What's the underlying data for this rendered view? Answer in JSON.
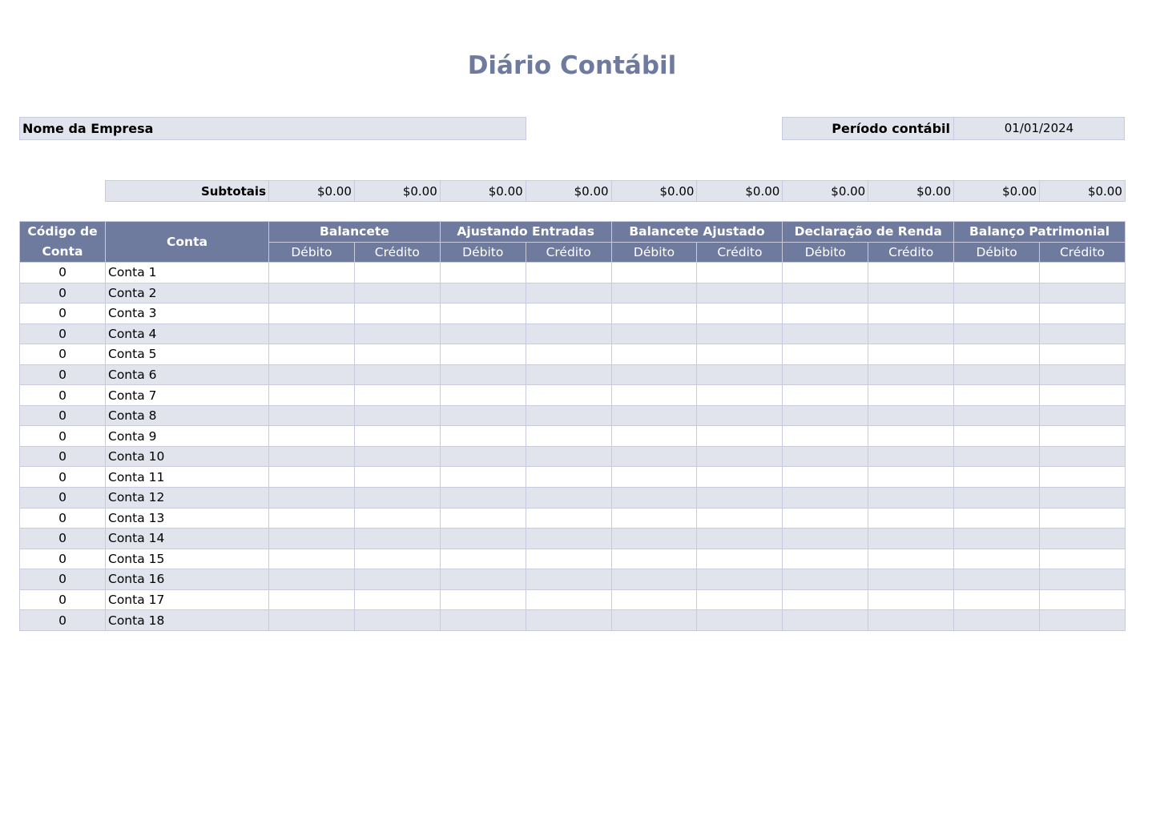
{
  "title": "Diário Contábil",
  "company_label": "Nome da Empresa",
  "period_label": "Período contábil",
  "period_value": "01/01/2024",
  "subtotals_label": "Subtotais",
  "subtotals": [
    "$0.00",
    "$0.00",
    "$0.00",
    "$0.00",
    "$0.00",
    "$0.00",
    "$0.00",
    "$0.00",
    "$0.00",
    "$0.00"
  ],
  "headers": {
    "code": "Código de Conta",
    "account": "Conta",
    "groups": [
      "Balancete",
      "Ajustando Entradas",
      "Balancete Ajustado",
      "Declaração de Renda",
      "Balanço Patrimonial"
    ],
    "debit": "Débito",
    "credit": "Crédito"
  },
  "rows": [
    {
      "code": "0",
      "account": "Conta 1"
    },
    {
      "code": "0",
      "account": "Conta 2"
    },
    {
      "code": "0",
      "account": "Conta 3"
    },
    {
      "code": "0",
      "account": "Conta 4"
    },
    {
      "code": "0",
      "account": "Conta 5"
    },
    {
      "code": "0",
      "account": "Conta 6"
    },
    {
      "code": "0",
      "account": "Conta 7"
    },
    {
      "code": "0",
      "account": "Conta 8"
    },
    {
      "code": "0",
      "account": "Conta 9"
    },
    {
      "code": "0",
      "account": "Conta 10"
    },
    {
      "code": "0",
      "account": "Conta 11"
    },
    {
      "code": "0",
      "account": "Conta 12"
    },
    {
      "code": "0",
      "account": "Conta 13"
    },
    {
      "code": "0",
      "account": "Conta 14"
    },
    {
      "code": "0",
      "account": "Conta 15"
    },
    {
      "code": "0",
      "account": "Conta 16"
    },
    {
      "code": "0",
      "account": "Conta 17"
    },
    {
      "code": "0",
      "account": "Conta 18"
    }
  ],
  "colors": {
    "header": "#6f7a9f",
    "band": "#e1e4ec",
    "border": "#c8cbdd",
    "title": "#6f7a9f"
  }
}
